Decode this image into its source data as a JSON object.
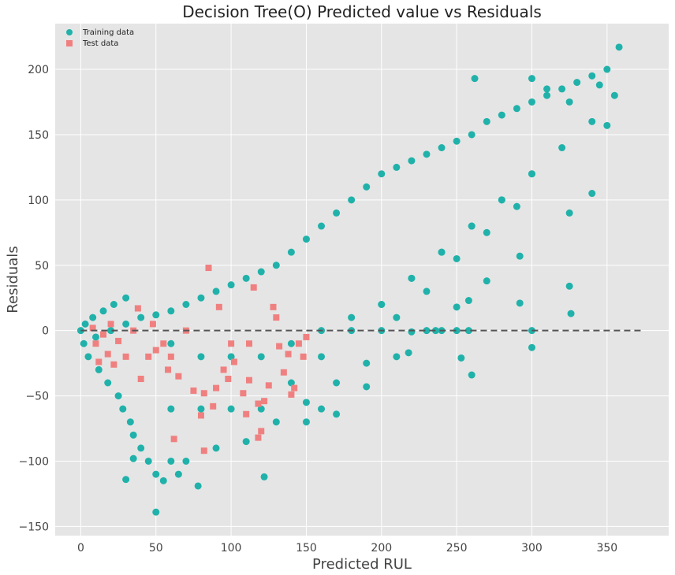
{
  "chart_data": {
    "type": "scatter",
    "title": "Decision Tree(O) Predicted value vs Residuals",
    "xlabel": "Predicted RUL",
    "ylabel": "Residuals",
    "xlim": [
      -17,
      391
    ],
    "ylim": [
      -157,
      235
    ],
    "x_ticks": [
      0,
      50,
      100,
      150,
      200,
      250,
      300,
      350
    ],
    "y_ticks": [
      -150,
      -100,
      -50,
      0,
      50,
      100,
      150,
      200
    ],
    "y_tick_labels": [
      "−150",
      "−100",
      "−50",
      "0",
      "50",
      "100",
      "150",
      "200"
    ],
    "grid": true,
    "legend_position": "top-left",
    "reference_line": {
      "y": 0,
      "x_range": [
        0,
        373
      ],
      "style": "dashed",
      "color": "#555555"
    },
    "series": [
      {
        "name": "Training data",
        "marker": "circle",
        "color": "#20b2aa",
        "points": [
          [
            0,
            0
          ],
          [
            2,
            -10
          ],
          [
            3,
            5
          ],
          [
            5,
            -20
          ],
          [
            8,
            10
          ],
          [
            12,
            -30
          ],
          [
            15,
            15
          ],
          [
            18,
            -40
          ],
          [
            22,
            20
          ],
          [
            25,
            -50
          ],
          [
            28,
            -60
          ],
          [
            30,
            25
          ],
          [
            33,
            -70
          ],
          [
            35,
            -80
          ],
          [
            40,
            -90
          ],
          [
            45,
            -100
          ],
          [
            50,
            -110
          ],
          [
            55,
            -115
          ],
          [
            60,
            -100
          ],
          [
            65,
            -110
          ],
          [
            70,
            -100
          ],
          [
            78,
            -119
          ],
          [
            50,
            -139
          ],
          [
            122,
            -112
          ],
          [
            30,
            -114
          ],
          [
            35,
            -98
          ],
          [
            10,
            -5
          ],
          [
            20,
            0
          ],
          [
            30,
            5
          ],
          [
            40,
            10
          ],
          [
            50,
            12
          ],
          [
            60,
            15
          ],
          [
            70,
            20
          ],
          [
            80,
            25
          ],
          [
            90,
            30
          ],
          [
            100,
            35
          ],
          [
            110,
            40
          ],
          [
            120,
            45
          ],
          [
            130,
            50
          ],
          [
            140,
            60
          ],
          [
            150,
            70
          ],
          [
            160,
            80
          ],
          [
            170,
            90
          ],
          [
            180,
            100
          ],
          [
            190,
            110
          ],
          [
            200,
            120
          ],
          [
            210,
            125
          ],
          [
            220,
            130
          ],
          [
            230,
            135
          ],
          [
            240,
            140
          ],
          [
            250,
            145
          ],
          [
            260,
            150
          ],
          [
            270,
            160
          ],
          [
            280,
            165
          ],
          [
            290,
            170
          ],
          [
            300,
            175
          ],
          [
            310,
            180
          ],
          [
            320,
            185
          ],
          [
            330,
            190
          ],
          [
            340,
            195
          ],
          [
            350,
            200
          ],
          [
            358,
            217
          ],
          [
            262,
            193
          ],
          [
            300,
            193
          ],
          [
            310,
            185
          ],
          [
            325,
            175
          ],
          [
            345,
            188
          ],
          [
            355,
            180
          ],
          [
            60,
            -10
          ],
          [
            80,
            -20
          ],
          [
            100,
            -20
          ],
          [
            120,
            -20
          ],
          [
            140,
            -10
          ],
          [
            160,
            0
          ],
          [
            180,
            10
          ],
          [
            200,
            20
          ],
          [
            220,
            40
          ],
          [
            240,
            60
          ],
          [
            260,
            80
          ],
          [
            280,
            100
          ],
          [
            300,
            120
          ],
          [
            320,
            140
          ],
          [
            340,
            160
          ],
          [
            60,
            -60
          ],
          [
            80,
            -60
          ],
          [
            100,
            -60
          ],
          [
            120,
            -60
          ],
          [
            140,
            -40
          ],
          [
            160,
            -20
          ],
          [
            180,
            0
          ],
          [
            200,
            20
          ],
          [
            220,
            40
          ],
          [
            240,
            60
          ],
          [
            260,
            80
          ],
          [
            280,
            100
          ],
          [
            300,
            120
          ],
          [
            90,
            -90
          ],
          [
            110,
            -85
          ],
          [
            130,
            -70
          ],
          [
            150,
            -55
          ],
          [
            170,
            -40
          ],
          [
            190,
            -25
          ],
          [
            200,
            0
          ],
          [
            210,
            10
          ],
          [
            230,
            30
          ],
          [
            250,
            55
          ],
          [
            270,
            75
          ],
          [
            290,
            95
          ],
          [
            150,
            -70
          ],
          [
            160,
            -60
          ],
          [
            170,
            -64
          ],
          [
            190,
            -43
          ],
          [
            210,
            -20
          ],
          [
            220,
            -1
          ],
          [
            230,
            0
          ],
          [
            240,
            0
          ],
          [
            250,
            0
          ],
          [
            236,
            0
          ],
          [
            258,
            0
          ],
          [
            300,
            0
          ],
          [
            218,
            -17
          ],
          [
            253,
            -21
          ],
          [
            260,
            -34
          ],
          [
            300,
            -13
          ],
          [
            292,
            21
          ],
          [
            325,
            34
          ],
          [
            326,
            13
          ],
          [
            292,
            57
          ],
          [
            270,
            38
          ],
          [
            258,
            23
          ],
          [
            250,
            18
          ],
          [
            340,
            105
          ],
          [
            325,
            90
          ],
          [
            350,
            157
          ]
        ]
      },
      {
        "name": "Test data",
        "marker": "square",
        "color": "#f08080",
        "points": [
          [
            8,
            2
          ],
          [
            10,
            -10
          ],
          [
            12,
            -24
          ],
          [
            15,
            -3
          ],
          [
            18,
            -18
          ],
          [
            20,
            5
          ],
          [
            22,
            -26
          ],
          [
            25,
            -8
          ],
          [
            30,
            -20
          ],
          [
            35,
            0
          ],
          [
            38,
            17
          ],
          [
            40,
            -37
          ],
          [
            45,
            -20
          ],
          [
            48,
            5
          ],
          [
            50,
            -15
          ],
          [
            55,
            -10
          ],
          [
            58,
            -30
          ],
          [
            60,
            -20
          ],
          [
            65,
            -35
          ],
          [
            70,
            0
          ],
          [
            75,
            -46
          ],
          [
            80,
            -65
          ],
          [
            82,
            -48
          ],
          [
            85,
            48
          ],
          [
            88,
            -58
          ],
          [
            90,
            -44
          ],
          [
            92,
            18
          ],
          [
            95,
            -30
          ],
          [
            98,
            -37
          ],
          [
            100,
            -10
          ],
          [
            102,
            -24
          ],
          [
            108,
            -48
          ],
          [
            110,
            -64
          ],
          [
            112,
            -38
          ],
          [
            115,
            33
          ],
          [
            118,
            -56
          ],
          [
            120,
            -77
          ],
          [
            122,
            -54
          ],
          [
            125,
            -42
          ],
          [
            128,
            18
          ],
          [
            130,
            10
          ],
          [
            132,
            -12
          ],
          [
            135,
            -32
          ],
          [
            138,
            -18
          ],
          [
            140,
            -49
          ],
          [
            142,
            -44
          ],
          [
            145,
            -10
          ],
          [
            148,
            -20
          ],
          [
            150,
            -5
          ],
          [
            62,
            -83
          ],
          [
            82,
            -92
          ],
          [
            112,
            -10
          ],
          [
            118,
            -82
          ]
        ]
      }
    ]
  }
}
